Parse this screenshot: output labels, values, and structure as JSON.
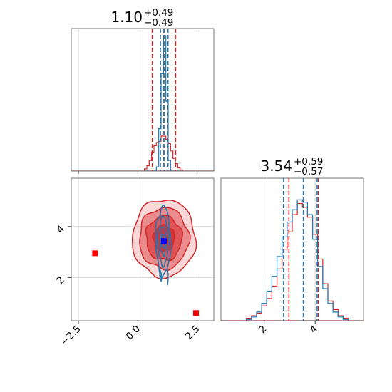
{
  "chart_data": {
    "type": "corner",
    "parameters": [
      {
        "title": {
          "main": "1.10",
          "plus": "+0.49",
          "minus": "−0.49"
        },
        "range": [
          -2.8,
          3.2
        ],
        "ticks": [
          -2.5,
          0.0,
          2.5
        ],
        "tick_labels": [
          "−2.5",
          "0.0",
          "2.5"
        ],
        "quantiles_red": [
          0.61,
          1.1,
          1.59
        ],
        "quantiles_blue": [
          0.95,
          1.1,
          1.27
        ]
      },
      {
        "title": {
          "main": "3.54",
          "plus": "+0.59",
          "minus": "−0.57"
        },
        "range": [
          0.3,
          5.9
        ],
        "ticks": [
          2,
          4
        ],
        "tick_labels": [
          "2",
          "4"
        ],
        "quantiles_red": [
          2.97,
          3.54,
          4.13
        ],
        "quantiles_blue": [
          2.76,
          3.54,
          4.08
        ]
      }
    ],
    "hist_x_centers_p1": [
      0.33,
      0.43,
      0.53,
      0.63,
      0.73,
      0.83,
      0.93,
      1.03,
      1.13,
      1.23,
      1.33,
      1.43,
      1.53,
      1.63,
      1.73,
      1.83
    ],
    "hist_red_p1": [
      2,
      5,
      10,
      18,
      24,
      27,
      28,
      33,
      33,
      30,
      26,
      19,
      12,
      7,
      3,
      1
    ],
    "hist_blue_p1": [
      0,
      0,
      0,
      0,
      0,
      4,
      40,
      92,
      128,
      66,
      10,
      0,
      0,
      0,
      0,
      0
    ],
    "hist_x_centers_p2": [
      1.4,
      1.6,
      1.8,
      2.0,
      2.2,
      2.4,
      2.6,
      2.8,
      3.0,
      3.2,
      3.4,
      3.6,
      3.8,
      4.0,
      4.2,
      4.4,
      4.6,
      4.8,
      5.0,
      5.2
    ],
    "hist_red_p2": [
      2,
      4,
      6,
      12,
      18,
      28,
      42,
      58,
      72,
      86,
      95,
      92,
      84,
      70,
      50,
      30,
      16,
      9,
      4,
      2
    ],
    "hist_blue_p2": [
      1,
      3,
      7,
      14,
      24,
      36,
      52,
      68,
      80,
      90,
      98,
      96,
      86,
      66,
      44,
      26,
      14,
      7,
      3,
      1
    ],
    "center_p1": 1.1,
    "center_p2": 3.54,
    "contours_red_sigma": [
      0.52,
      0.6
    ],
    "contours_blue_sigma": [
      0.13,
      0.55
    ],
    "truth_markers_red": [
      [
        -1.8,
        2.95
      ],
      [
        2.45,
        0.6
      ]
    ],
    "marker_blue": [
      1.1,
      3.43
    ],
    "colors": {
      "red": "#d62728",
      "blue": "#1f77b4",
      "grid": "#c8c8c8"
    },
    "grid": true
  }
}
